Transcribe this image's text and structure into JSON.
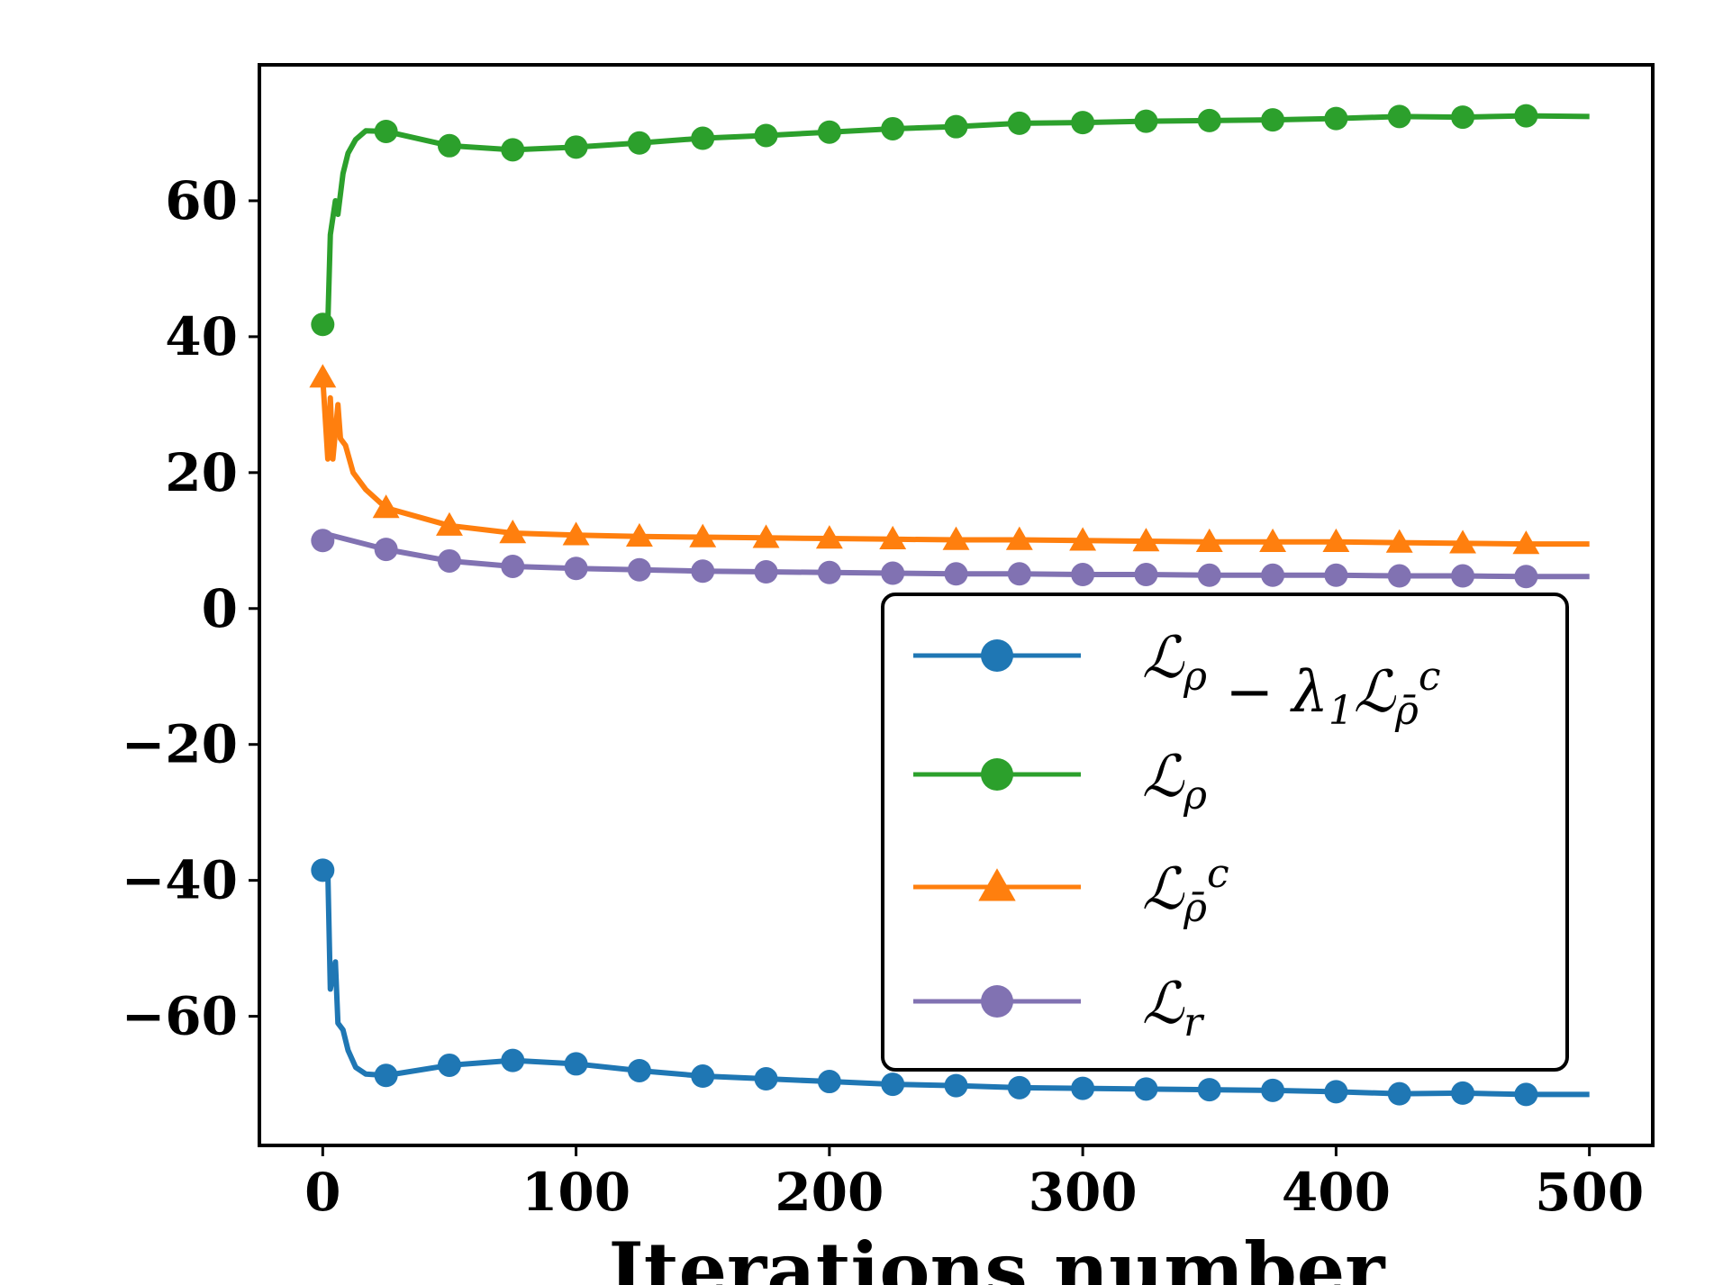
{
  "chart_data": {
    "type": "line",
    "title": "",
    "xlabel": "Iterations number",
    "ylabel": "",
    "xlim": [
      -25,
      525
    ],
    "ylim": [
      -79,
      80
    ],
    "xticks": [
      0,
      100,
      200,
      300,
      400,
      500
    ],
    "xtick_labels": [
      "0",
      "100",
      "200",
      "300",
      "400",
      "500"
    ],
    "yticks": [
      -60,
      -40,
      -20,
      0,
      20,
      40,
      60
    ],
    "ytick_labels": [
      "−60",
      "−40",
      "−20",
      "0",
      "20",
      "40",
      "60"
    ],
    "grid": false,
    "legend_position": "lower-right",
    "marker_x": [
      0,
      25,
      50,
      75,
      100,
      125,
      150,
      175,
      200,
      225,
      250,
      275,
      300,
      325,
      350,
      375,
      400,
      425,
      450,
      475
    ],
    "series": [
      {
        "name": "ℒρ − λ1ℒρ̄c",
        "color": "#1f77b4",
        "marker": "circle",
        "x": [
          0,
          2,
          3,
          5,
          6,
          8,
          10,
          13,
          17,
          25,
          50,
          75,
          100,
          125,
          150,
          175,
          200,
          225,
          250,
          275,
          300,
          325,
          350,
          375,
          400,
          425,
          450,
          475,
          500
        ],
        "y": [
          -38.5,
          -38.5,
          -56,
          -52,
          -61,
          -62,
          -65,
          -67.5,
          -68.5,
          -68.7,
          -67.2,
          -66.5,
          -67,
          -68,
          -68.8,
          -69.2,
          -69.6,
          -70,
          -70.2,
          -70.5,
          -70.6,
          -70.7,
          -70.8,
          -70.9,
          -71.1,
          -71.4,
          -71.3,
          -71.5,
          -71.5
        ]
      },
      {
        "name": "ℒρ",
        "color": "#2ca02c",
        "marker": "circle",
        "x": [
          0,
          2,
          3,
          5,
          6,
          8,
          10,
          13,
          17,
          25,
          50,
          75,
          100,
          125,
          150,
          175,
          200,
          225,
          250,
          275,
          300,
          325,
          350,
          375,
          400,
          425,
          450,
          475,
          500
        ],
        "y": [
          41.8,
          41.8,
          55,
          60,
          58,
          64,
          67,
          69,
          70.3,
          70.2,
          68.1,
          67.5,
          67.9,
          68.5,
          69.2,
          69.6,
          70.1,
          70.6,
          70.9,
          71.4,
          71.5,
          71.7,
          71.8,
          71.9,
          72.1,
          72.4,
          72.3,
          72.5,
          72.4
        ]
      },
      {
        "name": "ℒρ̄c",
        "color": "#ff7f0e",
        "marker": "triangle",
        "x": [
          0,
          2,
          3,
          4,
          6,
          7,
          9,
          12,
          17,
          25,
          50,
          75,
          100,
          125,
          150,
          175,
          200,
          225,
          250,
          275,
          300,
          325,
          350,
          375,
          400,
          425,
          450,
          475,
          500
        ],
        "y": [
          34,
          22,
          31,
          22,
          30,
          25,
          24,
          20,
          17.5,
          14.8,
          12.2,
          11.1,
          10.8,
          10.6,
          10.5,
          10.4,
          10.3,
          10.2,
          10.1,
          10.1,
          10.0,
          9.9,
          9.8,
          9.8,
          9.8,
          9.7,
          9.6,
          9.5,
          9.5
        ]
      },
      {
        "name": "ℒr",
        "color": "#8172b2",
        "marker": "circle",
        "x": [
          0,
          3,
          25,
          50,
          75,
          100,
          125,
          150,
          175,
          200,
          225,
          250,
          275,
          300,
          325,
          350,
          375,
          400,
          425,
          450,
          475,
          500
        ],
        "y": [
          10,
          10.8,
          8.7,
          7,
          6.2,
          5.9,
          5.7,
          5.5,
          5.4,
          5.3,
          5.2,
          5.1,
          5.1,
          5.0,
          5.0,
          4.9,
          4.9,
          4.9,
          4.8,
          4.8,
          4.7,
          4.7
        ]
      }
    ],
    "legend_entries": [
      {
        "main": "ℒ",
        "sub": "ρ",
        "rest_main": " − λ",
        "rest_sub1": "1",
        "rest_main2": "ℒ",
        "rest_sub2": "ρ̄",
        "rest_sup2": "c"
      },
      {
        "main": "ℒ",
        "sub": "ρ"
      },
      {
        "main": "ℒ",
        "sub": "ρ̄",
        "sup": "c"
      },
      {
        "main": "ℒ",
        "sub": "r"
      }
    ]
  }
}
